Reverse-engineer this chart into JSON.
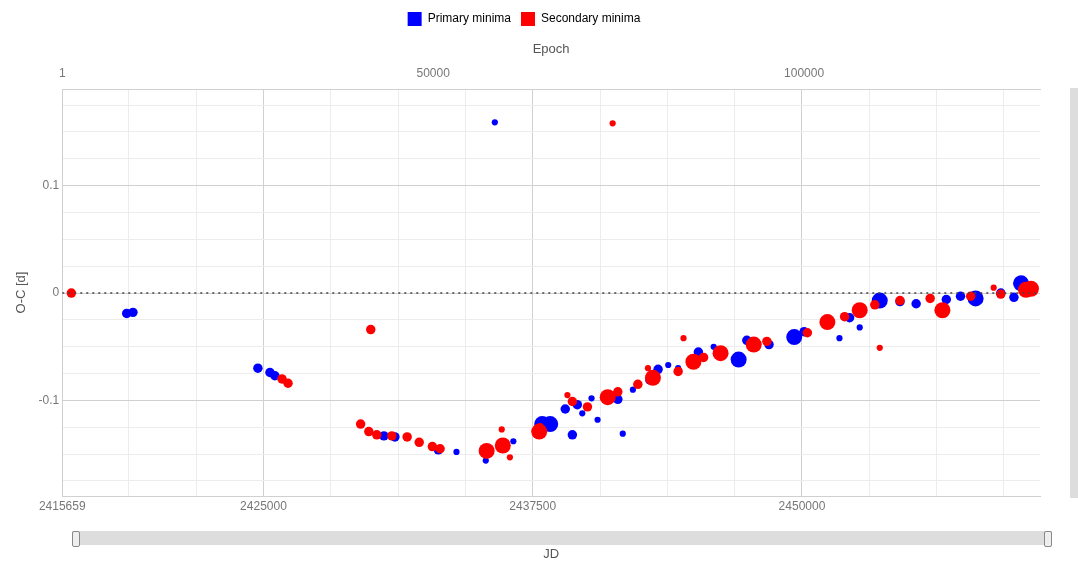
{
  "chart_data": {
    "type": "bubble",
    "xlabel": "JD",
    "x2label": "Epoch",
    "ylabel": "O-C [d]",
    "xlim": [
      2415659,
      2461050
    ],
    "xticks": [
      2415659,
      {
        "value": 2418750,
        "label": null
      },
      {
        "value": 2421875,
        "label": null
      },
      2425000,
      {
        "value": 2428125,
        "label": null
      },
      {
        "value": 2431250,
        "label": null
      },
      {
        "value": 2434375,
        "label": null
      },
      2437500,
      {
        "value": 2440625,
        "label": null
      },
      {
        "value": 2443750,
        "label": null
      },
      {
        "value": 2446875,
        "label": null
      },
      2450000,
      {
        "value": 2453125,
        "label": null
      },
      {
        "value": 2456250,
        "label": null
      },
      {
        "value": 2459375,
        "label": null
      }
    ],
    "x2lim": [
      1,
      131800
    ],
    "x2ticks": [
      1,
      50000,
      100000
    ],
    "ylim": [
      -0.189,
      0.19
    ],
    "yticks": [
      {
        "value": -0.175,
        "label": null
      },
      {
        "value": -0.15,
        "label": null
      },
      {
        "value": -0.125,
        "label": null
      },
      -0.1,
      {
        "value": -0.075,
        "label": null
      },
      {
        "value": -0.05,
        "label": null
      },
      {
        "value": -0.025,
        "label": null
      },
      0,
      {
        "value": 0.025,
        "label": null
      },
      {
        "value": 0.05,
        "label": null
      },
      {
        "value": 0.075,
        "label": null
      },
      0.1,
      {
        "value": 0.125,
        "label": null
      },
      {
        "value": 0.15,
        "label": null
      },
      {
        "value": 0.175,
        "label": null
      }
    ],
    "grid": true,
    "legend": "top",
    "marker": "circle",
    "ref_lines": [
      {
        "axis": "y",
        "value": 0,
        "color": "#444444",
        "line_style": "dotted"
      }
    ],
    "series": [
      {
        "name": "Primary minima",
        "color": "#0000ff",
        "x": [
          2418650,
          2418940,
          2424740,
          2425300,
          2425530,
          2435740,
          2430590,
          2431100,
          2433120,
          2433960,
          2435320,
          2436600,
          2437940,
          2438310,
          2439340,
          2439010,
          2439570,
          2440510,
          2441450,
          2441680,
          2442940,
          2443320,
          2443790,
          2444250,
          2445190,
          2447060,
          2447440,
          2448470,
          2449640,
          2450100,
          2452210,
          2453610,
          2454550,
          2457360,
          2458060,
          2459230,
          2460170,
          2459840,
          2452680,
          2451740,
          2439800,
          2440230,
          2442150,
          2445900,
          2455300,
          2456700
        ],
        "values": [
          -0.019,
          -0.018,
          -0.07,
          -0.074,
          -0.077,
          0.159,
          -0.133,
          -0.134,
          -0.146,
          -0.148,
          -0.156,
          -0.138,
          -0.122,
          -0.122,
          -0.132,
          -0.108,
          -0.104,
          -0.118,
          -0.099,
          -0.131,
          -0.081,
          -0.071,
          -0.067,
          -0.07,
          -0.055,
          -0.062,
          -0.044,
          -0.048,
          -0.041,
          -0.036,
          -0.023,
          -0.007,
          -0.008,
          -0.003,
          -0.005,
          0,
          0.009,
          -0.004,
          -0.032,
          -0.042,
          -0.112,
          -0.098,
          -0.09,
          -0.05,
          -0.01,
          -0.006
        ],
        "sizes": [
          0.35,
          0.35,
          0.35,
          0.35,
          0.35,
          0.15,
          0.35,
          0.35,
          0.35,
          0.15,
          0.15,
          0.15,
          1,
          1,
          0.35,
          0.35,
          0.35,
          0.15,
          0.35,
          0.15,
          0.35,
          0.35,
          0.15,
          0.15,
          0.35,
          1,
          0.35,
          0.35,
          1,
          0.35,
          0.35,
          1,
          0.35,
          0.35,
          1,
          0.35,
          1,
          0.35,
          0.15,
          0.15,
          0.15,
          0.15,
          0.15,
          0.15,
          0.35,
          0.35
        ]
      },
      {
        "name": "Secondary minima",
        "color": "#ff0000",
        "x": [
          2416080,
          2441210,
          2429980,
          2425860,
          2426140,
          2429510,
          2429890,
          2430260,
          2430960,
          2431670,
          2432230,
          2432840,
          2433200,
          2435360,
          2436110,
          2436060,
          2436440,
          2437800,
          2437850,
          2439340,
          2440040,
          2440980,
          2441450,
          2442380,
          2443080,
          2444250,
          2444960,
          2445430,
          2446220,
          2447760,
          2448370,
          2450250,
          2451180,
          2451980,
          2452680,
          2453380,
          2454550,
          2456520,
          2455950,
          2457830,
          2459230,
          2460400,
          2460630,
          2453610,
          2439110,
          2442850,
          2444500,
          2458900
        ],
        "values": [
          0,
          0.158,
          -0.034,
          -0.08,
          -0.084,
          -0.122,
          -0.129,
          -0.132,
          -0.133,
          -0.134,
          -0.139,
          -0.143,
          -0.145,
          -0.147,
          -0.142,
          -0.127,
          -0.153,
          -0.129,
          -0.124,
          -0.101,
          -0.106,
          -0.097,
          -0.092,
          -0.085,
          -0.079,
          -0.073,
          -0.064,
          -0.06,
          -0.056,
          -0.048,
          -0.045,
          -0.037,
          -0.027,
          -0.022,
          -0.016,
          -0.011,
          -0.007,
          -0.016,
          -0.005,
          -0.003,
          -0.001,
          0.003,
          0.004,
          -0.051,
          -0.095,
          -0.07,
          -0.042,
          0.005
        ],
        "sizes": [
          0.35,
          0.15,
          0.35,
          0.35,
          0.35,
          0.35,
          0.35,
          0.35,
          0.35,
          0.35,
          0.35,
          0.35,
          0.35,
          1,
          1,
          0.15,
          0.15,
          1,
          0.15,
          0.35,
          0.35,
          1,
          0.35,
          0.35,
          1,
          0.35,
          1,
          0.35,
          1,
          1,
          0.35,
          0.35,
          1,
          0.35,
          1,
          0.35,
          0.35,
          1,
          0.35,
          0.35,
          0.35,
          1,
          1,
          0.15,
          0.15,
          0.15,
          0.15,
          0.15
        ]
      }
    ]
  }
}
